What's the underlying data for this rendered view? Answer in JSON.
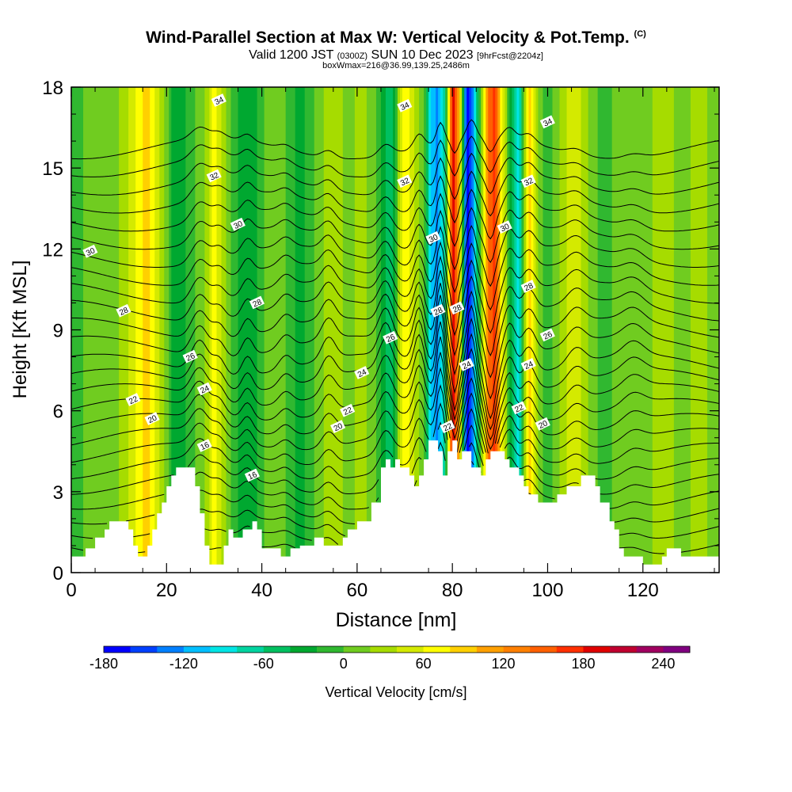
{
  "header": {
    "title": "Wind-Parallel Section at Max W: Vertical Velocity & Pot.Temp.",
    "title_tag": "(C)",
    "valid_prefix": "Valid 1200 JST",
    "valid_utc": "(0300Z)",
    "valid_date": "SUN 10 Dec 2023",
    "forecast": "[9hrFcst@2204z]",
    "boxline": "boxWmax=216@36.99,139.25,2486m"
  },
  "chart_data": {
    "type": "heatmap",
    "xlabel": "Distance [nm]",
    "ylabel": "Height [Kft MSL]",
    "xlim": [
      0,
      136
    ],
    "ylim": [
      0,
      18
    ],
    "x_ticks": [
      0,
      20,
      40,
      60,
      80,
      100,
      120
    ],
    "y_ticks": [
      0,
      3,
      6,
      9,
      12,
      15,
      18
    ],
    "colorbar": {
      "label": "Vertical Velocity [cm/s]",
      "min": -180,
      "max": 260,
      "step": 20,
      "tick_values": [
        -180,
        -120,
        -60,
        0,
        60,
        120,
        180,
        240
      ],
      "colors": [
        "#0000ff",
        "#0040ff",
        "#0080ff",
        "#00bfff",
        "#00e5e5",
        "#00d4a0",
        "#00c060",
        "#00a830",
        "#30b830",
        "#70cc20",
        "#a6dc00",
        "#d4ea00",
        "#ffff00",
        "#ffd000",
        "#ffa000",
        "#ff8000",
        "#ff6000",
        "#ff3000",
        "#e00000",
        "#c00030",
        "#a00060",
        "#800080"
      ]
    },
    "vertical_velocity_bands": [
      {
        "x": 0,
        "w": -20
      },
      {
        "x": 4,
        "w": 10
      },
      {
        "x": 8,
        "w": 0
      },
      {
        "x": 12,
        "w": 40
      },
      {
        "x": 16,
        "w": 90
      },
      {
        "x": 19,
        "w": 30
      },
      {
        "x": 22,
        "w": -40
      },
      {
        "x": 25,
        "w": -10
      },
      {
        "x": 28,
        "w": 20
      },
      {
        "x": 30,
        "w": 70
      },
      {
        "x": 33,
        "w": 10
      },
      {
        "x": 36,
        "w": -40
      },
      {
        "x": 39,
        "w": -20
      },
      {
        "x": 42,
        "w": 20
      },
      {
        "x": 45,
        "w": 0
      },
      {
        "x": 48,
        "w": -30
      },
      {
        "x": 52,
        "w": 10
      },
      {
        "x": 55,
        "w": 40
      },
      {
        "x": 58,
        "w": 10
      },
      {
        "x": 61,
        "w": 30
      },
      {
        "x": 64,
        "w": 0
      },
      {
        "x": 67,
        "w": -60
      },
      {
        "x": 70,
        "w": 80
      },
      {
        "x": 72,
        "w": 40
      },
      {
        "x": 74,
        "w": 0
      },
      {
        "x": 75.5,
        "w": -100
      },
      {
        "x": 77,
        "w": -130
      },
      {
        "x": 78.5,
        "w": -60
      },
      {
        "x": 80,
        "w": 200
      },
      {
        "x": 81.5,
        "w": 100
      },
      {
        "x": 83,
        "w": -170
      },
      {
        "x": 84.5,
        "w": -120
      },
      {
        "x": 86,
        "w": 0
      },
      {
        "x": 87.5,
        "w": 140
      },
      {
        "x": 89,
        "w": 170
      },
      {
        "x": 90.5,
        "w": 60
      },
      {
        "x": 92,
        "w": -20
      },
      {
        "x": 94,
        "w": -90
      },
      {
        "x": 96,
        "w": 100
      },
      {
        "x": 98,
        "w": 20
      },
      {
        "x": 100,
        "w": -20
      },
      {
        "x": 103,
        "w": 30
      },
      {
        "x": 106,
        "w": 60
      },
      {
        "x": 109,
        "w": 10
      },
      {
        "x": 112,
        "w": -10
      },
      {
        "x": 116,
        "w": 20
      },
      {
        "x": 120,
        "w": 0
      },
      {
        "x": 124,
        "w": 40
      },
      {
        "x": 128,
        "w": 10
      },
      {
        "x": 132,
        "w": 30
      },
      {
        "x": 136,
        "w": 0
      }
    ],
    "terrain": [
      [
        0,
        0.6
      ],
      [
        3,
        0.6
      ],
      [
        3,
        0.9
      ],
      [
        5,
        0.9
      ],
      [
        5,
        1.3
      ],
      [
        7,
        1.3
      ],
      [
        7,
        1.6
      ],
      [
        8,
        1.6
      ],
      [
        8,
        1.9
      ],
      [
        12,
        1.9
      ],
      [
        12,
        1.6
      ],
      [
        13,
        1.6
      ],
      [
        13,
        1.0
      ],
      [
        14,
        1.0
      ],
      [
        14,
        0.6
      ],
      [
        16,
        0.6
      ],
      [
        16,
        1.0
      ],
      [
        17,
        1.0
      ],
      [
        17,
        1.6
      ],
      [
        18,
        1.6
      ],
      [
        18,
        2.2
      ],
      [
        19,
        2.2
      ],
      [
        19,
        2.6
      ],
      [
        20,
        2.6
      ],
      [
        20,
        3.2
      ],
      [
        21,
        3.2
      ],
      [
        21,
        3.6
      ],
      [
        22,
        3.6
      ],
      [
        22,
        3.9
      ],
      [
        26,
        3.9
      ],
      [
        26,
        3.2
      ],
      [
        27,
        3.2
      ],
      [
        27,
        2.2
      ],
      [
        28,
        2.2
      ],
      [
        28,
        1.0
      ],
      [
        29,
        1.0
      ],
      [
        29,
        0.3
      ],
      [
        32,
        0.3
      ],
      [
        32,
        1.0
      ],
      [
        33,
        1.0
      ],
      [
        33,
        1.6
      ],
      [
        34,
        1.6
      ],
      [
        34,
        1.3
      ],
      [
        36,
        1.3
      ],
      [
        36,
        1.6
      ],
      [
        38,
        1.6
      ],
      [
        38,
        1.9
      ],
      [
        39,
        1.9
      ],
      [
        39,
        1.6
      ],
      [
        40,
        1.6
      ],
      [
        40,
        0.9
      ],
      [
        44,
        0.9
      ],
      [
        44,
        0.6
      ],
      [
        46,
        0.6
      ],
      [
        46,
        0.9
      ],
      [
        48,
        0.9
      ],
      [
        48,
        1.0
      ],
      [
        51,
        1.0
      ],
      [
        51,
        1.3
      ],
      [
        53,
        1.3
      ],
      [
        53,
        1.0
      ],
      [
        57,
        1.0
      ],
      [
        57,
        1.3
      ],
      [
        58,
        1.3
      ],
      [
        58,
        1.6
      ],
      [
        60,
        1.6
      ],
      [
        60,
        1.9
      ],
      [
        63,
        1.9
      ],
      [
        63,
        2.6
      ],
      [
        65,
        2.6
      ],
      [
        65,
        3.9
      ],
      [
        66,
        3.9
      ],
      [
        66,
        4.2
      ],
      [
        67,
        4.2
      ],
      [
        67,
        3.9
      ],
      [
        68,
        3.9
      ],
      [
        68,
        4.2
      ],
      [
        69,
        4.2
      ],
      [
        69,
        3.9
      ],
      [
        71,
        3.9
      ],
      [
        71,
        3.6
      ],
      [
        72,
        3.6
      ],
      [
        72,
        3.2
      ],
      [
        73,
        3.2
      ],
      [
        73,
        3.6
      ],
      [
        74,
        3.6
      ],
      [
        74,
        4.2
      ],
      [
        75,
        4.2
      ],
      [
        75,
        4.9
      ],
      [
        77,
        4.9
      ],
      [
        77,
        4.5
      ],
      [
        78,
        4.5
      ],
      [
        78,
        3.6
      ],
      [
        79,
        3.6
      ],
      [
        79,
        4.5
      ],
      [
        80,
        4.5
      ],
      [
        80,
        4.9
      ],
      [
        81,
        4.9
      ],
      [
        81,
        4.2
      ],
      [
        82,
        4.2
      ],
      [
        82,
        4.5
      ],
      [
        84,
        4.5
      ],
      [
        84,
        3.9
      ],
      [
        86,
        3.9
      ],
      [
        86,
        3.6
      ],
      [
        87,
        3.6
      ],
      [
        87,
        4.2
      ],
      [
        88,
        4.2
      ],
      [
        88,
        4.5
      ],
      [
        91,
        4.5
      ],
      [
        91,
        4.2
      ],
      [
        92,
        4.2
      ],
      [
        92,
        3.9
      ],
      [
        94,
        3.9
      ],
      [
        94,
        3.6
      ],
      [
        95,
        3.6
      ],
      [
        95,
        3.2
      ],
      [
        96,
        3.2
      ],
      [
        96,
        2.9
      ],
      [
        98,
        2.9
      ],
      [
        98,
        2.6
      ],
      [
        102,
        2.6
      ],
      [
        102,
        2.9
      ],
      [
        104,
        2.9
      ],
      [
        104,
        3.2
      ],
      [
        107,
        3.2
      ],
      [
        107,
        3.6
      ],
      [
        110,
        3.6
      ],
      [
        110,
        3.2
      ],
      [
        111,
        3.2
      ],
      [
        111,
        2.6
      ],
      [
        113,
        2.6
      ],
      [
        113,
        1.9
      ],
      [
        114,
        1.9
      ],
      [
        114,
        1.6
      ],
      [
        115,
        1.6
      ],
      [
        115,
        0.9
      ],
      [
        116,
        0.9
      ],
      [
        116,
        0.6
      ],
      [
        120,
        0.6
      ],
      [
        120,
        0.3
      ],
      [
        124,
        0.3
      ],
      [
        124,
        0.6
      ],
      [
        125,
        0.6
      ],
      [
        125,
        0.9
      ],
      [
        128,
        0.9
      ],
      [
        128,
        0.6
      ],
      [
        136,
        0.6
      ]
    ],
    "theta_levels": [
      10,
      11,
      12,
      13,
      14,
      15,
      16,
      17,
      18,
      19,
      20,
      21,
      22,
      23,
      24,
      25,
      26,
      27,
      28,
      29,
      30,
      31,
      32,
      33,
      34,
      35,
      36
    ],
    "contour_labels": [
      {
        "x": 31,
        "y": 17.5,
        "text": "34"
      },
      {
        "x": 70,
        "y": 17.3,
        "text": "34"
      },
      {
        "x": 100,
        "y": 16.7,
        "text": "34"
      },
      {
        "x": 30,
        "y": 14.7,
        "text": "32"
      },
      {
        "x": 70,
        "y": 14.5,
        "text": "32"
      },
      {
        "x": 96,
        "y": 14.5,
        "text": "32"
      },
      {
        "x": 35,
        "y": 12.9,
        "text": "30"
      },
      {
        "x": 4,
        "y": 11.9,
        "text": "30"
      },
      {
        "x": 76,
        "y": 12.4,
        "text": "30"
      },
      {
        "x": 91,
        "y": 12.8,
        "text": "30"
      },
      {
        "x": 39,
        "y": 10.0,
        "text": "28"
      },
      {
        "x": 11,
        "y": 9.7,
        "text": "28"
      },
      {
        "x": 77,
        "y": 9.7,
        "text": "28"
      },
      {
        "x": 81,
        "y": 9.8,
        "text": "28"
      },
      {
        "x": 96,
        "y": 10.6,
        "text": "28"
      },
      {
        "x": 25,
        "y": 8.0,
        "text": "26"
      },
      {
        "x": 67,
        "y": 8.7,
        "text": "26"
      },
      {
        "x": 100,
        "y": 8.8,
        "text": "26"
      },
      {
        "x": 28,
        "y": 6.8,
        "text": "24"
      },
      {
        "x": 61,
        "y": 7.4,
        "text": "24"
      },
      {
        "x": 83,
        "y": 7.7,
        "text": "24"
      },
      {
        "x": 96,
        "y": 7.7,
        "text": "24"
      },
      {
        "x": 13,
        "y": 6.4,
        "text": "22"
      },
      {
        "x": 58,
        "y": 6.0,
        "text": "22"
      },
      {
        "x": 79,
        "y": 5.4,
        "text": "22"
      },
      {
        "x": 94,
        "y": 6.1,
        "text": "22"
      },
      {
        "x": 17,
        "y": 5.7,
        "text": "20"
      },
      {
        "x": 56,
        "y": 5.4,
        "text": "20"
      },
      {
        "x": 99,
        "y": 5.5,
        "text": "20"
      },
      {
        "x": 28,
        "y": 4.7,
        "text": "16"
      },
      {
        "x": 38,
        "y": 3.6,
        "text": "16"
      }
    ]
  }
}
